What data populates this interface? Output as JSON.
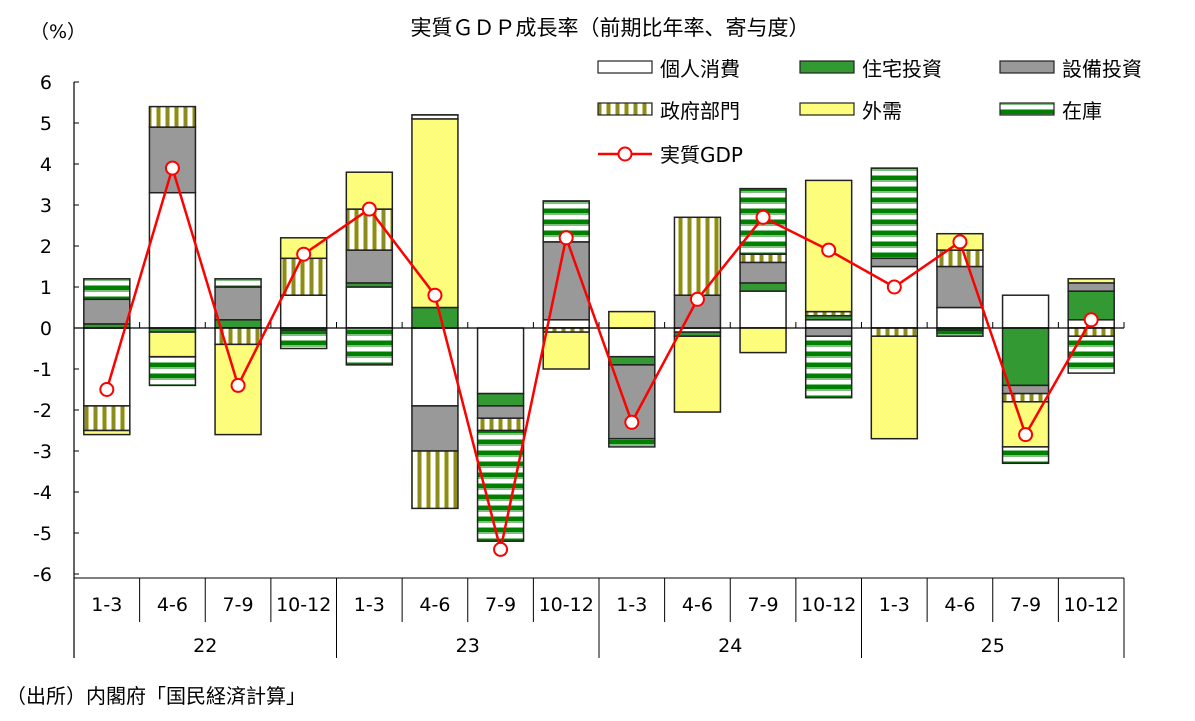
{
  "chart_data": {
    "type": "bar",
    "stacked": true,
    "title": "実質ＧＤＰ成長率（前期比年率、寄与度）",
    "ylabel": "（%）",
    "ylim": [
      -6,
      6
    ],
    "yticks": [
      6,
      5,
      4,
      3,
      2,
      1,
      0,
      -1,
      -2,
      -3,
      -4,
      -5,
      -6
    ],
    "categories": [
      "1-3",
      "4-6",
      "7-9",
      "10-12",
      "1-3",
      "4-6",
      "7-9",
      "10-12",
      "1-3",
      "4-6",
      "7-9",
      "10-12",
      "1-3",
      "4-6",
      "7-9",
      "10-12"
    ],
    "years": [
      "22",
      "23",
      "24",
      "25"
    ],
    "legend_position": "top-right",
    "series": [
      {
        "name": "個人消費",
        "fill": "#ffffff",
        "values": [
          -1.9,
          3.3,
          0,
          0.8,
          1.0,
          -1.9,
          -1.6,
          0.2,
          -0.7,
          -0.1,
          0.9,
          0.2,
          1.5,
          0.5,
          0.8,
          0.2
        ]
      },
      {
        "name": "住宅投資",
        "fill": "#339933",
        "values": [
          0.1,
          -0.1,
          0.2,
          -0.05,
          0.1,
          0.5,
          -0.3,
          0,
          -0.2,
          -0.1,
          0.2,
          0.1,
          0,
          -0.05,
          -1.4,
          0.7
        ]
      },
      {
        "name": "設備投資",
        "fill": "#999999",
        "values": [
          0.6,
          1.6,
          0.8,
          0,
          0.8,
          -1.1,
          -0.3,
          1.9,
          -1.8,
          0.8,
          0.5,
          -0.2,
          0.2,
          1.0,
          -0.2,
          0.2
        ]
      },
      {
        "name": "政府部門",
        "fill": "pattern-gov",
        "values": [
          -0.6,
          0.5,
          -0.4,
          0.9,
          1.0,
          -1.4,
          -0.3,
          -0.1,
          0,
          1.9,
          0.2,
          0.1,
          -0.2,
          0.4,
          -0.2,
          -0.2
        ]
      },
      {
        "name": "外需",
        "fill": "pattern-ext",
        "values": [
          -0.1,
          -0.6,
          -2.2,
          0.5,
          0.9,
          4.6,
          0,
          -0.9,
          0.4,
          -1.85,
          -0.6,
          3.2,
          -2.5,
          0.4,
          -1.1,
          0.1
        ]
      },
      {
        "name": "在庫",
        "fill": "pattern-inv",
        "values": [
          0.5,
          -0.7,
          0.2,
          -0.45,
          -0.9,
          0.1,
          -2.7,
          1.0,
          -0.2,
          0,
          1.6,
          -1.5,
          2.2,
          -0.15,
          -0.4,
          -0.9
        ]
      }
    ],
    "line_series": {
      "name": "実質GDP",
      "color": "#ff0000",
      "values": [
        -1.5,
        3.9,
        -1.4,
        1.8,
        2.9,
        0.8,
        -5.4,
        2.2,
        -2.3,
        0.7,
        2.7,
        1.9,
        1.0,
        2.1,
        -2.6,
        0.2
      ]
    },
    "colors": {
      "gov_stripe": "#8c8c1e",
      "ext_fill": "#ffff66",
      "inv_stripe": "#008000",
      "line": "#ff0000"
    }
  },
  "source": "（出所）内閣府「国民経済計算」"
}
